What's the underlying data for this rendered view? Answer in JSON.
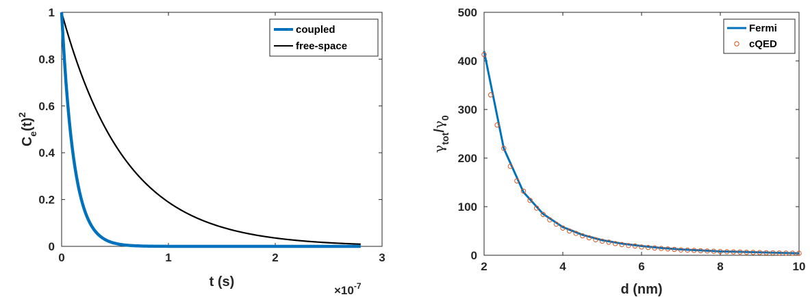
{
  "chart_data": [
    {
      "type": "line",
      "xlabel": "t (s)",
      "ylabel": "C_e(t)^2",
      "ylabel_parts": {
        "base": "C",
        "sub": "e",
        "mid": "(t)",
        "sup": "2"
      },
      "x_exponent_label": {
        "prefix": "×10",
        "exp": "-7"
      },
      "x_scale_factor": 1e-07,
      "xlim": [
        0,
        3
      ],
      "ylim": [
        0,
        1
      ],
      "xticks": [
        "0",
        "1",
        "2",
        "3"
      ],
      "yticks": [
        "0",
        "0.2",
        "0.4",
        "0.6",
        "0.8",
        "1"
      ],
      "x_end": 2.8,
      "legend_position": "top-right",
      "series": [
        {
          "name": "coupled",
          "decay_constant": 0.115,
          "color": "#0072BD"
        },
        {
          "name": "free-space",
          "decay_constant": 0.6,
          "color": "#000000"
        }
      ]
    },
    {
      "type": "line",
      "xlabel": "d (nm)",
      "ylabel": "γ_tot/γ_0",
      "ylabel_parts": {
        "g1": "γ",
        "sub1": "tot",
        "slash": "/",
        "g2": "γ",
        "sub2": "0"
      },
      "xlim": [
        2,
        10
      ],
      "ylim": [
        0,
        500
      ],
      "xticks": [
        "2",
        "4",
        "6",
        "8",
        "10"
      ],
      "yticks": [
        "0",
        "100",
        "200",
        "300",
        "400",
        "500"
      ],
      "legend_position": "top-right",
      "series": [
        {
          "name": "Fermi",
          "style": "line",
          "color": "#0072BD",
          "x": [
            2.0,
            2.5,
            3.0,
            3.5,
            4.0,
            4.5,
            5.0,
            5.5,
            6.0,
            6.5,
            7.0,
            7.5,
            8.0,
            8.5,
            9.0,
            9.5,
            10.0
          ],
          "y": [
            420,
            220,
            130,
            85,
            58,
            42,
            31,
            24,
            19,
            15,
            12,
            10,
            8,
            7,
            6,
            5,
            4
          ]
        },
        {
          "name": "cQED",
          "style": "markers",
          "marker": "circle",
          "color": "#D95319",
          "x": [
            2.0,
            2.167,
            2.333,
            2.5,
            2.667,
            2.833,
            3.0,
            3.167,
            3.333,
            3.5,
            3.667,
            3.833,
            4.0,
            4.167,
            4.333,
            4.5,
            4.667,
            4.833,
            5.0,
            5.167,
            5.333,
            5.5,
            5.667,
            5.833,
            6.0,
            6.167,
            6.333,
            6.5,
            6.667,
            6.833,
            7.0,
            7.167,
            7.333,
            7.5,
            7.667,
            7.833,
            8.0,
            8.167,
            8.333,
            8.5,
            8.667,
            8.833,
            9.0,
            9.167,
            9.333,
            9.5,
            9.667,
            9.833,
            10.0
          ],
          "y": [
            413,
            330,
            268,
            220,
            183,
            153,
            132,
            113,
            97,
            84,
            73,
            64,
            56,
            50,
            45,
            40,
            36,
            32,
            29,
            27,
            24,
            22,
            20,
            19,
            17,
            16,
            15,
            14,
            13,
            12,
            11,
            10.5,
            10,
            9.3,
            8.7,
            8.2,
            7.7,
            7.3,
            6.9,
            6.5,
            6.1,
            5.8,
            5.5,
            5.2,
            5,
            4.7,
            4.5,
            4.3,
            4.1
          ]
        }
      ]
    }
  ]
}
